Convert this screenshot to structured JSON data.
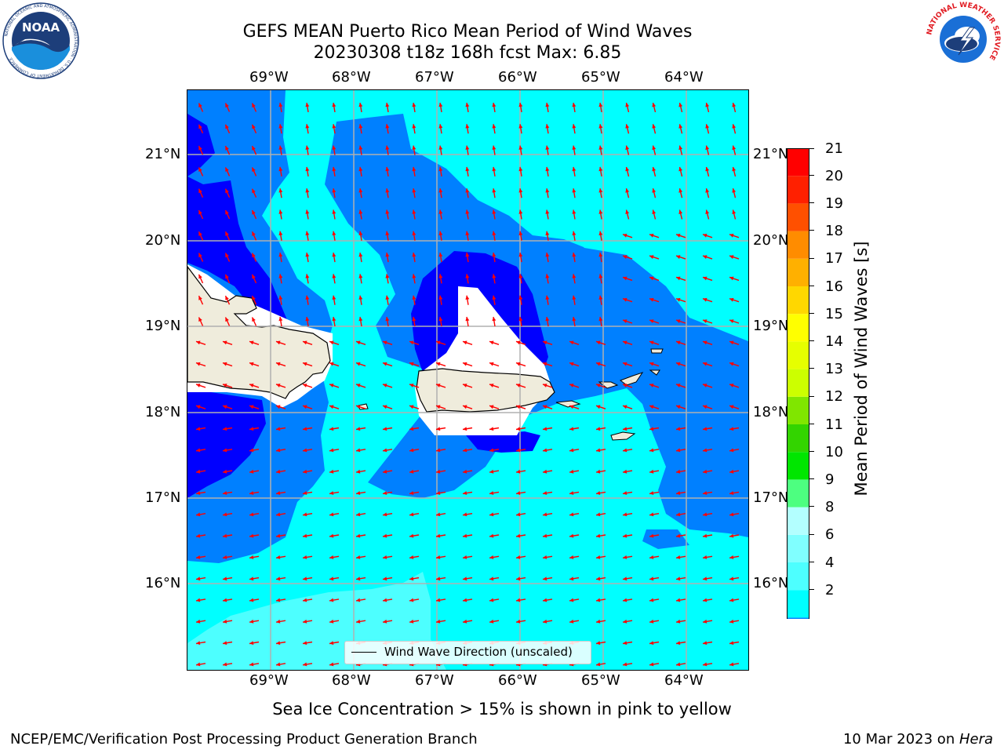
{
  "header": {
    "title_line1": "GEFS MEAN Puerto Rico Mean Period of Wind Waves",
    "title_line2": "20230308 t18z 168h fcst   Max: 6.85"
  },
  "logos": {
    "left_icon": "noaa-logo-icon",
    "left_text": "NOAA",
    "left_ring_text": "NATIONAL OCEANIC AND ATMOSPHERIC ADMINISTRATION · U.S. DEPARTMENT OF COMMERCE",
    "right_icon": "nws-logo-icon",
    "right_ring_text": "NATIONAL WEATHER SERVICE"
  },
  "map": {
    "lon_ticks": [
      "69°W",
      "68°W",
      "67°W",
      "66°W",
      "65°W",
      "64°W"
    ],
    "lat_ticks": [
      "21°N",
      "20°N",
      "19°N",
      "18°N",
      "17°N",
      "16°N"
    ],
    "legend_label": "Wind Wave Direction (unscaled)",
    "colors": {
      "band_2_4": "#0000ff",
      "band_4_6": "#0080ff",
      "band_6_7": "#00ffff",
      "band_7_8": "#4dffff",
      "land": "#efecdc",
      "arrows": "#ff0000",
      "grid": "#b0b0b0"
    }
  },
  "colorbar": {
    "label": "Mean Period of Wind Waves [s]",
    "ticks": [
      "2",
      "4",
      "6",
      "8",
      "9",
      "10",
      "11",
      "12",
      "13",
      "14",
      "15",
      "16",
      "17",
      "18",
      "19",
      "20",
      "21"
    ],
    "segment_colors": [
      "#0080ff",
      "#00ffff",
      "#4dffff",
      "#80ffff",
      "#b3ffff",
      "#4dff80",
      "#00e600",
      "#33d400",
      "#80e600",
      "#ccff00",
      "#e6ff00",
      "#ffff00",
      "#ffd700",
      "#ffb000",
      "#ff8c00",
      "#ff5000",
      "#ff2000",
      "#ff0000"
    ],
    "under_color": "#0000ff"
  },
  "footer": {
    "note": "Sea Ice Concentration > 15% is shown in pink to yellow",
    "credit": "NCEP/EMC/Verification Post Processing Product Generation Branch",
    "date_prefix": "10 Mar 2023 on ",
    "machine": "Hera"
  }
}
